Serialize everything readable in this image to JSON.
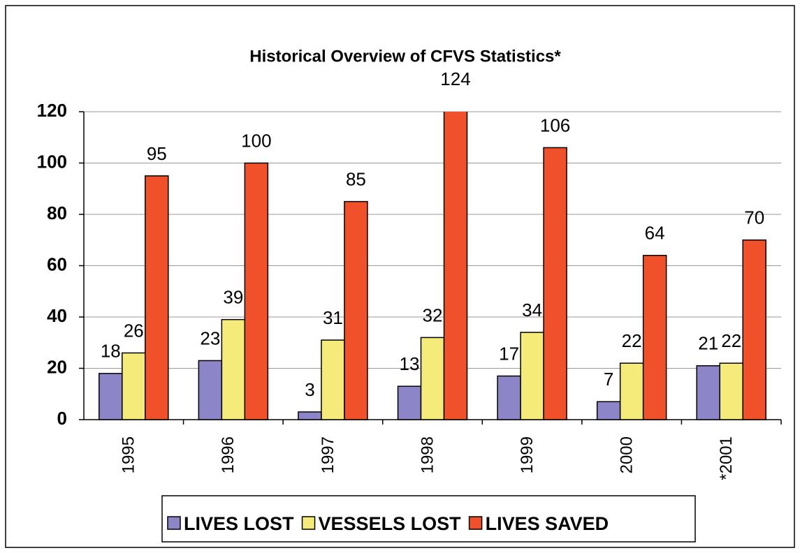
{
  "chart_data": {
    "type": "bar",
    "title": "Historical Overview of CFVS Statistics*",
    "categories": [
      "1995",
      "1996",
      "1997",
      "1998",
      "1999",
      "2000",
      "*2001"
    ],
    "series": [
      {
        "name": "LIVES LOST",
        "color": "#8c86c8",
        "values": [
          18,
          23,
          3,
          13,
          17,
          7,
          21
        ]
      },
      {
        "name": "VESSELS LOST",
        "color": "#f5eb7a",
        "values": [
          26,
          39,
          31,
          32,
          34,
          22,
          22
        ]
      },
      {
        "name": "LIVES SAVED",
        "color": "#f0502a",
        "values": [
          95,
          100,
          85,
          124,
          106,
          64,
          70
        ]
      }
    ],
    "ylim": [
      0,
      120
    ],
    "yticks": [
      0,
      20,
      40,
      60,
      80,
      100,
      120
    ],
    "grid": true,
    "legend": "bottom"
  }
}
